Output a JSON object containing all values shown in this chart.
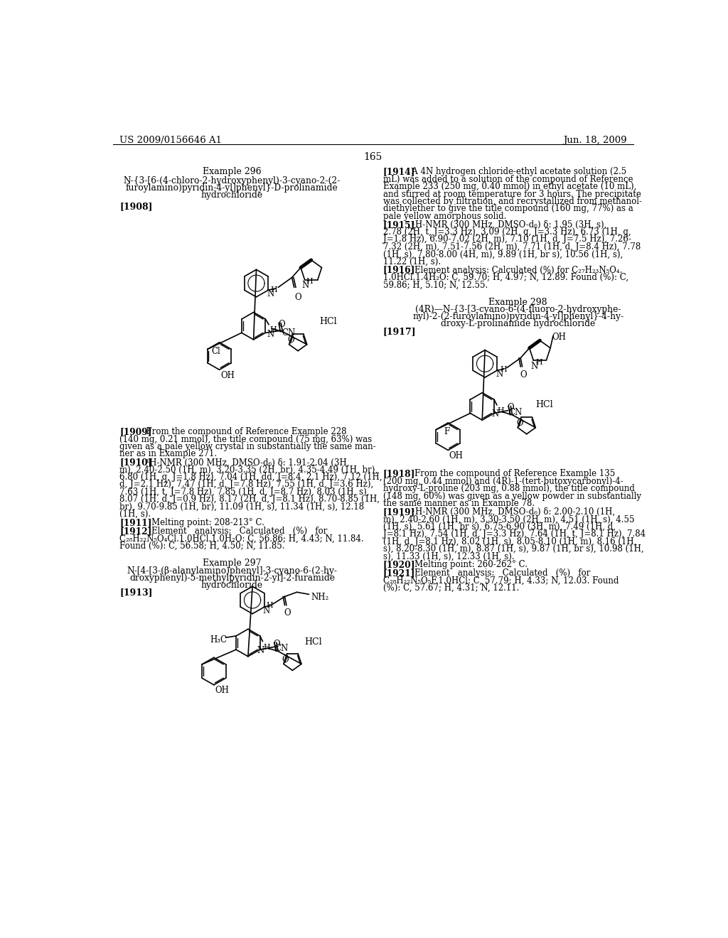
{
  "header_left": "US 2009/0156646 A1",
  "header_right": "Jun. 18, 2009",
  "page_number": "165",
  "background_color": "#ffffff",
  "text_color": "#000000"
}
